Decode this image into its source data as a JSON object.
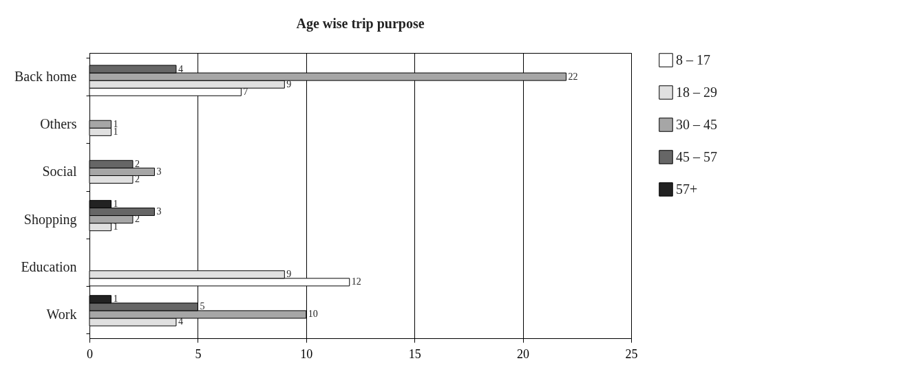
{
  "chart_data": {
    "type": "bar",
    "orientation": "horizontal",
    "title": "Age wise trip purpose",
    "categories": [
      "Back home",
      "Others",
      "Social",
      "Shopping",
      "Education",
      "Work"
    ],
    "series": [
      {
        "name": "8 – 17",
        "color": "#ffffff",
        "values": [
          7,
          null,
          null,
          null,
          12,
          null
        ]
      },
      {
        "name": "18 – 29",
        "color": "#e0e0e0",
        "values": [
          9,
          1,
          2,
          1,
          9,
          4
        ]
      },
      {
        "name": "30 – 45",
        "color": "#a6a6a6",
        "values": [
          22,
          1,
          3,
          2,
          null,
          10
        ]
      },
      {
        "name": "45 – 57",
        "color": "#666666",
        "values": [
          4,
          null,
          2,
          3,
          null,
          5
        ]
      },
      {
        "name": "57+",
        "color": "#222222",
        "values": [
          null,
          null,
          null,
          1,
          null,
          1
        ]
      }
    ],
    "xlim": [
      0,
      25
    ],
    "xticks": [
      0,
      5,
      10,
      15,
      20,
      25
    ],
    "grid": "x",
    "legend": "right",
    "data_labels": true
  }
}
